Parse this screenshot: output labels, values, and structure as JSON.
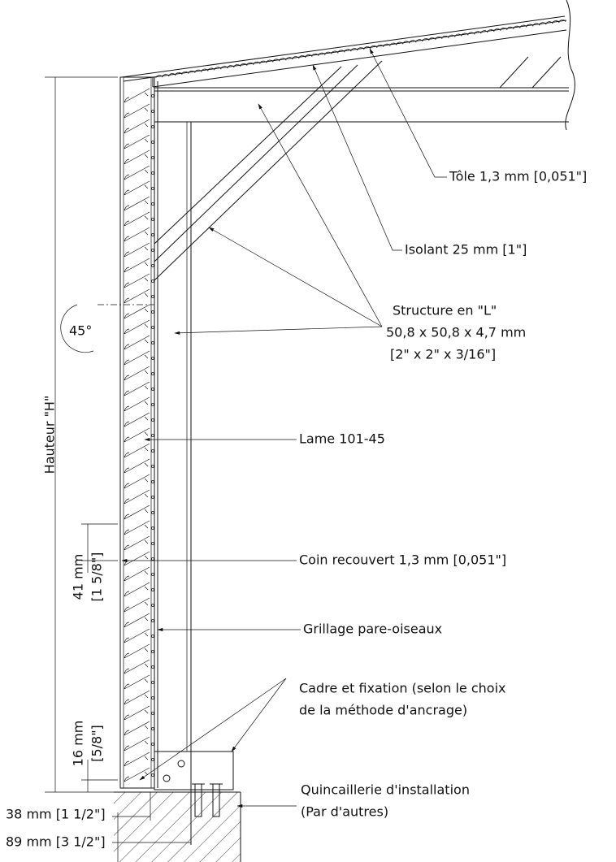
{
  "labels": {
    "tole": "Tôle 1,3 mm [0,051\"]",
    "isolant": "Isolant 25 mm [1\"]",
    "structure": [
      "Structure en \"L\"",
      "50,8 x 50,8 x 4,7 mm",
      "[2\" x 2\" x 3/16\"]"
    ],
    "lame": "Lame 101-45",
    "coin": "Coin recouvert 1,3 mm [0,051\"]",
    "grillage": "Grillage pare-oiseaux",
    "cadre": [
      "Cadre et fixation (selon le choix",
      "de la méthode d'ancrage)"
    ],
    "quincaillerie": [
      "Quincaillerie d'installation",
      "(Par d'autres)"
    ]
  },
  "dimensions": {
    "angle": "45°",
    "hauteur": "Hauteur \"H\"",
    "pas": [
      "41 mm",
      "[1 5/8\"]"
    ],
    "bas": [
      "16 mm",
      "[5/8\"]"
    ],
    "largeur1": "38 mm [1 1/2\"]",
    "largeur2": "89 mm [3 1/2\"]"
  }
}
